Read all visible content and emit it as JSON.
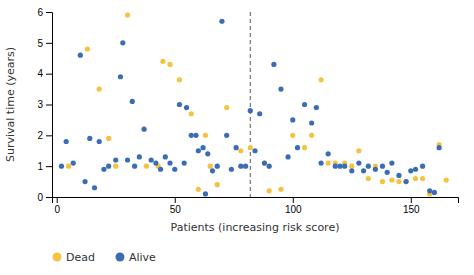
{
  "chart_data": {
    "type": "scatter",
    "xlabel": "Patients (increasing risk score)",
    "ylabel": "Survival time (years)",
    "series": [
      {
        "name": "Dead",
        "color": "#F5C242",
        "x": [
          5,
          13,
          18,
          22,
          25,
          30,
          38,
          43,
          45,
          48,
          52,
          57,
          60,
          63,
          65,
          68,
          72,
          78,
          82,
          88,
          90,
          95,
          100,
          105,
          108,
          112,
          115,
          118,
          122,
          125,
          128,
          132,
          135,
          138,
          142,
          145,
          148,
          152,
          155,
          158,
          162,
          165
        ],
        "values": [
          1.0,
          4.8,
          3.5,
          1.9,
          1.0,
          5.9,
          1.0,
          1.0,
          4.4,
          4.3,
          3.8,
          2.7,
          0.25,
          2.0,
          1.0,
          0.4,
          2.9,
          1.5,
          1.6,
          1.1,
          0.2,
          0.25,
          2.0,
          1.6,
          2.0,
          3.8,
          1.1,
          1.1,
          1.1,
          1.0,
          1.5,
          0.6,
          1.0,
          0.5,
          0.55,
          0.5,
          0.5,
          0.6,
          0.6,
          0.1,
          1.7,
          0.55
        ]
      },
      {
        "name": "Alive",
        "color": "#3B6DB5",
        "x": [
          2,
          4,
          7,
          10,
          12,
          14,
          16,
          18,
          20,
          22,
          25,
          27,
          28,
          30,
          32,
          33,
          35,
          37,
          40,
          42,
          44,
          46,
          48,
          50,
          52,
          54,
          55,
          57,
          59,
          60,
          62,
          63,
          64,
          66,
          68,
          70,
          72,
          74,
          76,
          78,
          80,
          82,
          84,
          86,
          88,
          90,
          92,
          95,
          98,
          100,
          102,
          105,
          108,
          110,
          112,
          115,
          118,
          120,
          122,
          125,
          128,
          130,
          132,
          135,
          138,
          140,
          142,
          145,
          148,
          150,
          152,
          155,
          158,
          160,
          162
        ],
        "values": [
          1.0,
          1.8,
          1.1,
          4.6,
          0.5,
          1.9,
          0.3,
          1.8,
          0.9,
          1.0,
          1.2,
          3.9,
          5.0,
          1.2,
          3.1,
          1.0,
          1.3,
          2.2,
          1.2,
          1.1,
          0.9,
          1.3,
          1.1,
          0.9,
          3.0,
          1.1,
          2.9,
          2.0,
          2.0,
          1.5,
          1.6,
          0.1,
          1.4,
          0.85,
          1.0,
          5.7,
          2.0,
          0.9,
          1.6,
          1.0,
          1.0,
          2.8,
          1.5,
          2.7,
          1.1,
          1.0,
          4.3,
          3.5,
          1.3,
          2.5,
          1.6,
          3.0,
          2.4,
          2.9,
          1.1,
          1.4,
          1.0,
          1.0,
          1.0,
          0.85,
          1.1,
          0.85,
          1.0,
          0.9,
          1.0,
          0.8,
          1.1,
          0.7,
          0.5,
          0.85,
          0.9,
          1.0,
          0.2,
          0.15,
          1.6
        ]
      }
    ],
    "reference_lines": [
      {
        "x": 82,
        "color": "#555555",
        "line_style": "dashed"
      }
    ],
    "xlim": [
      -2,
      170
    ],
    "ylim": [
      0,
      6
    ],
    "xticks": [
      0,
      50,
      100,
      150
    ],
    "yticks": [
      0,
      1,
      2,
      3,
      4,
      5,
      6
    ],
    "grid": false,
    "legend": "bottom"
  }
}
